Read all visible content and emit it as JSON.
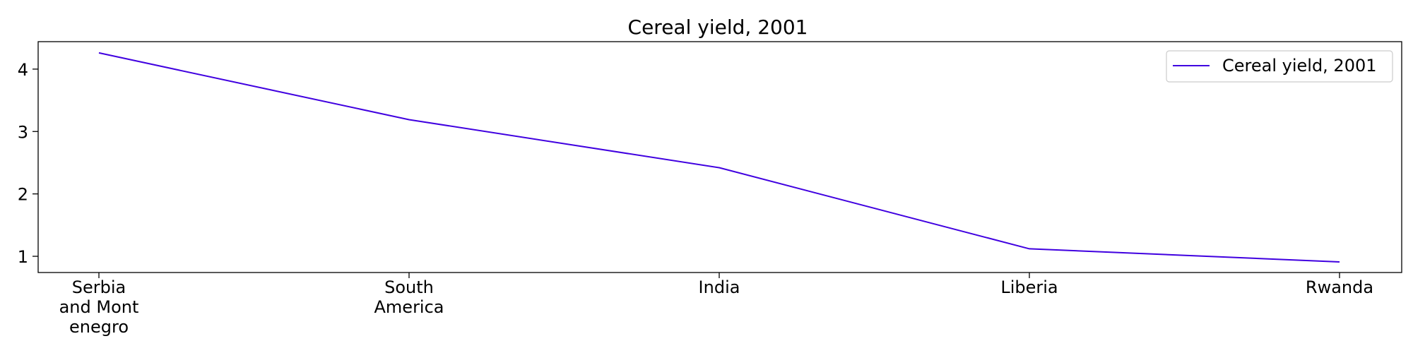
{
  "chart_data": {
    "type": "line",
    "title": "Cereal yield, 2001",
    "xlabel": "",
    "ylabel": "",
    "categories": [
      [
        "Serbia",
        "and Mont",
        "enegro"
      ],
      [
        "South",
        "America"
      ],
      [
        "India"
      ],
      [
        "Liberia"
      ],
      [
        "Rwanda"
      ]
    ],
    "series": [
      {
        "name": "Cereal yield, 2001",
        "values": [
          4.26,
          3.19,
          2.42,
          1.12,
          0.91
        ]
      }
    ],
    "ylim": [
      0.74,
      4.44
    ],
    "yticks": [
      "1",
      "2",
      "3",
      "4"
    ],
    "legend": "top-right",
    "grid": false,
    "colors": {
      "line": "#4000e0",
      "axis": "#000000",
      "legend_border": "#cccccc"
    }
  }
}
